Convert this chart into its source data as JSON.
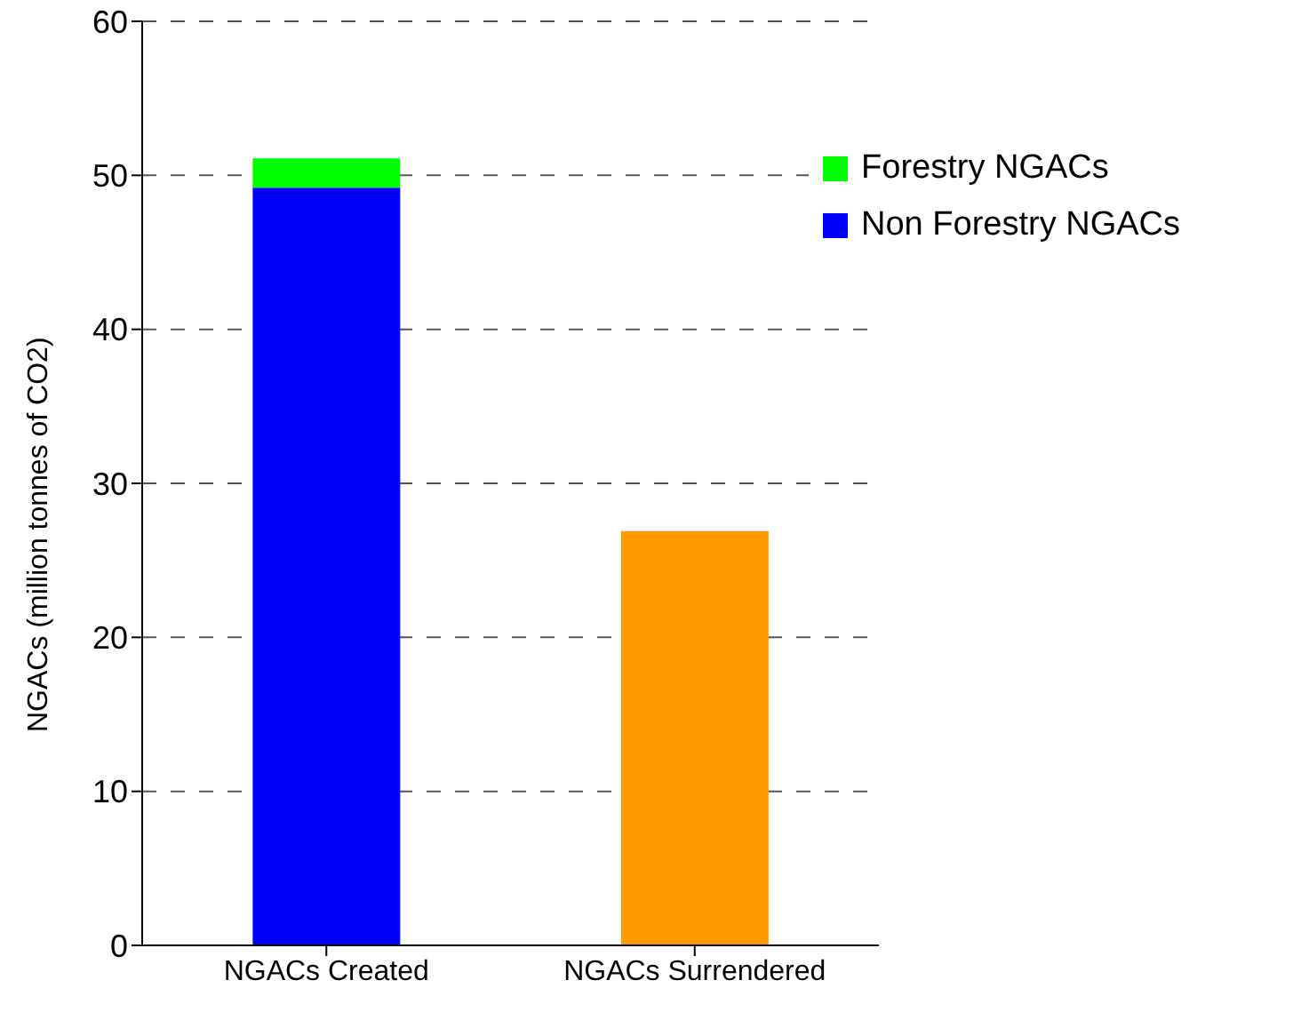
{
  "chart_data": {
    "type": "bar",
    "stacked": true,
    "ylabel": "NGACs (million tonnes of CO2)",
    "categories": [
      "NGACs Created",
      "NGACs Surrendered"
    ],
    "series": [
      {
        "name": "Non Forestry NGACs",
        "color": "#0000ff",
        "values": [
          49.2,
          null
        ]
      },
      {
        "name": "Forestry NGACs",
        "color": "#00ff00",
        "values": [
          1.9,
          null
        ]
      },
      {
        "color": "#ff9900",
        "values": [
          null,
          26.9
        ]
      }
    ],
    "ylim": [
      0,
      60
    ],
    "yticks": [
      0,
      10,
      20,
      30,
      40,
      50,
      60
    ],
    "grid": "y",
    "legend": "top right"
  }
}
